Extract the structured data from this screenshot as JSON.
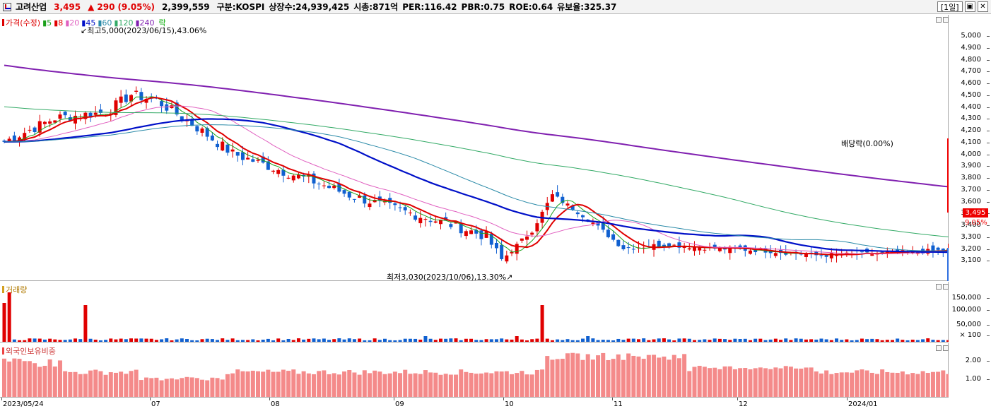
{
  "header": {
    "name": "고려산업",
    "price": "3,495",
    "change_arrow": "▲",
    "change": "290",
    "change_pct": "(9.05%)",
    "volume": "2,399,559",
    "market": "구분:KOSPI",
    "shares": "상장수:24,939,425",
    "market_cap": "시총:871억",
    "per": "PER:116.42",
    "pbr": "PBR:0.75",
    "roe": "ROE:0.64",
    "float_ratio": "유보율:325.37",
    "period_button": "[1일]"
  },
  "price_legend": {
    "title": "가격(수정)",
    "ma": [
      {
        "label": "5",
        "color": "#1aa01a"
      },
      {
        "label": "8",
        "color": "#e00000"
      },
      {
        "label": "20",
        "color": "#e060c0"
      },
      {
        "label": "45",
        "color": "#0010c8"
      },
      {
        "label": "60",
        "color": "#2a8aa8"
      },
      {
        "label": "120",
        "color": "#33aa66"
      },
      {
        "label": "240",
        "color": "#8020b0"
      }
    ],
    "drop_label": "락"
  },
  "annotations": {
    "high": "최고5,000(2023/06/15),43.06%",
    "low": "최저3,030(2023/10/06),13.30%",
    "dividend": "배당락(0.00%)"
  },
  "price_axis": [
    "5,000",
    "4,900",
    "4,800",
    "4,700",
    "4,600",
    "4,500",
    "4,400",
    "4,300",
    "4,200",
    "4,100",
    "4,000",
    "3,900",
    "3,800",
    "3,700",
    "3,600",
    "3,500",
    "3,400",
    "3,300",
    "3,200",
    "3,100"
  ],
  "current_price_tag": "3,495",
  "current_pct_tag": "9.05%",
  "volume_pane": {
    "title": "거래량",
    "axis": [
      "150,000",
      "100,000",
      "50,000"
    ],
    "unit": "× 100"
  },
  "foreign_pane": {
    "title": "외국인보유비중",
    "axis": [
      "2.00",
      "1.00"
    ]
  },
  "x_axis": [
    "2023/05/24",
    "07",
    "08",
    "09",
    "10",
    "11",
    "12",
    "2024/01"
  ],
  "colors": {
    "up": "#e00000",
    "down": "#1060d0",
    "foreign_bar": "#f48a8a"
  },
  "chart_data": {
    "type": "candlestick",
    "start_price": 3700,
    "seed": 7,
    "ylim": [
      3000,
      5100
    ],
    "max_price": 5000,
    "min_price": 3030,
    "last_close": 3495
  }
}
